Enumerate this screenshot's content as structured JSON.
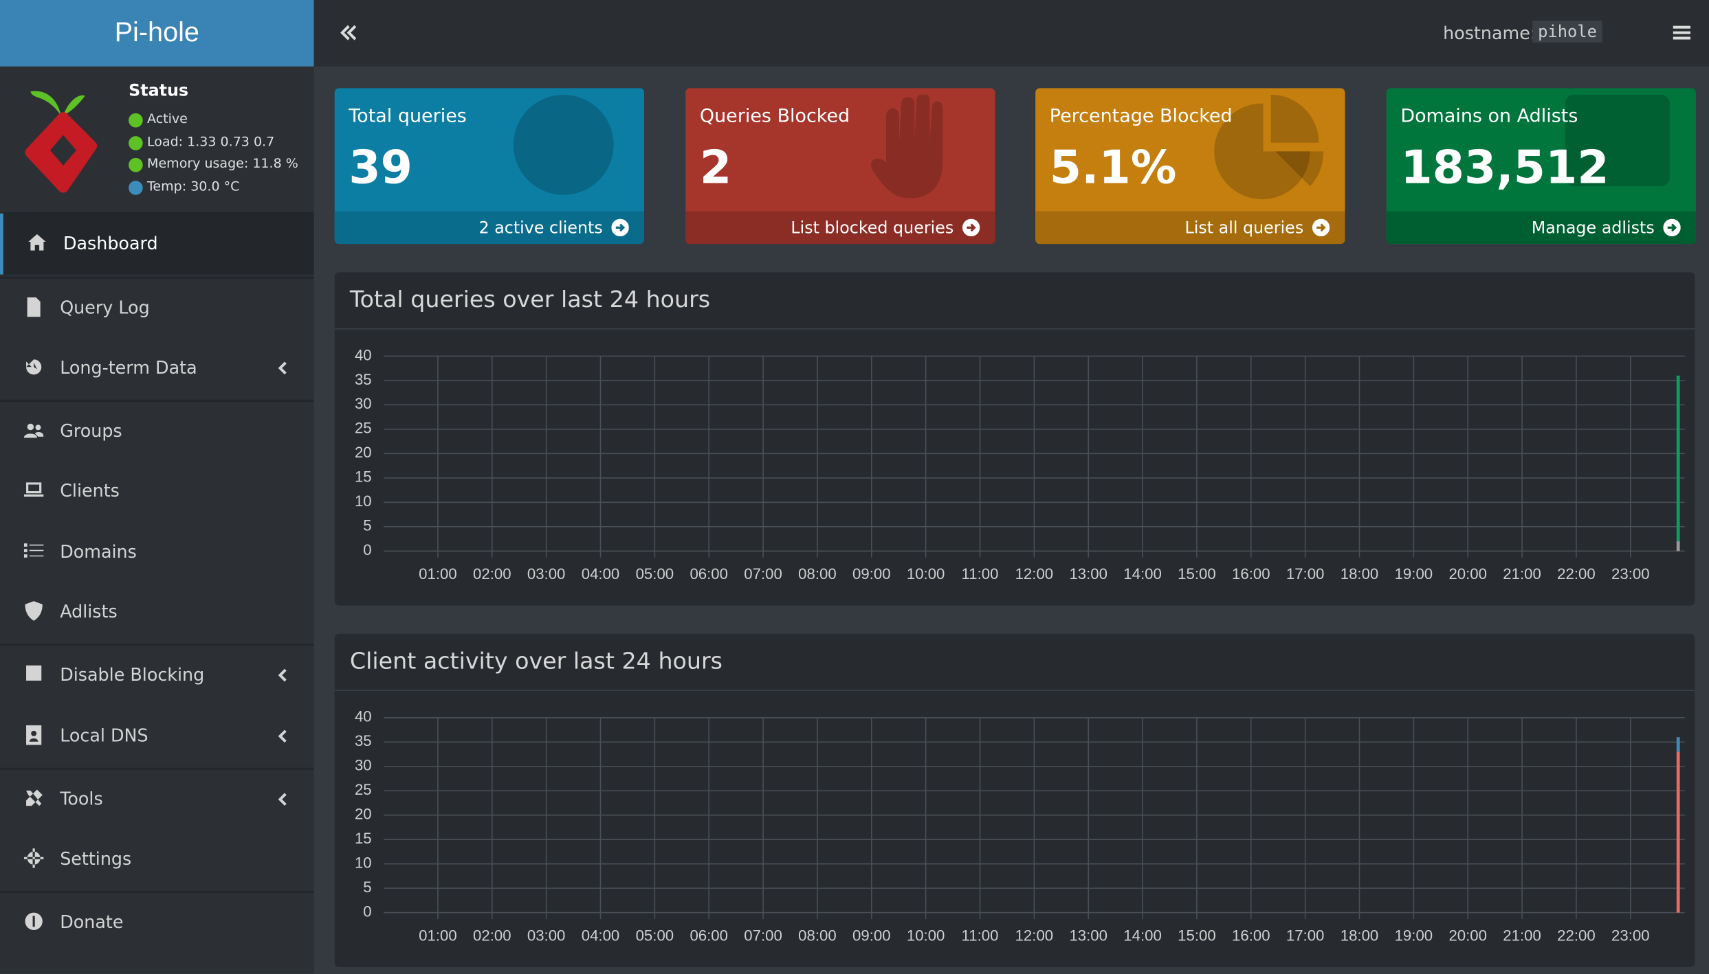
{
  "sidebar": {
    "brand": "Pi-hole",
    "status": {
      "title": "Status",
      "lines": [
        "Active",
        "Load:  1.33  0.73  0.7",
        "Memory usage:  11.8 %",
        "Temp: 30.0 °C"
      ]
    },
    "menu": [
      {
        "label": "Dashboard",
        "active": true
      },
      {
        "label": "Query Log"
      },
      {
        "label": "Long-term Data",
        "has_submenu": true
      },
      {
        "label": "Groups"
      },
      {
        "label": "Clients"
      },
      {
        "label": "Domains"
      },
      {
        "label": "Adlists"
      },
      {
        "label": "Disable Blocking",
        "has_submenu": true
      },
      {
        "label": "Local DNS",
        "has_submenu": true
      },
      {
        "label": "Tools",
        "has_submenu": true
      },
      {
        "label": "Settings"
      },
      {
        "label": "Donate"
      }
    ]
  },
  "topbar": {
    "hostname_label": "hostname:",
    "hostname": "pihole"
  },
  "cards": [
    {
      "title": "Total queries",
      "value": "39",
      "link": "2 active clients",
      "color": "#0c7ea3",
      "footer_color": "#0a6c8c"
    },
    {
      "title": "Queries Blocked",
      "value": "2",
      "link": "List blocked queries",
      "color": "#a6362c",
      "footer_color": "#8c2d25"
    },
    {
      "title": "Percentage Blocked",
      "value": "5.1%",
      "link": "List all queries",
      "color": "#c47f0f",
      "footer_color": "#a66b0c"
    },
    {
      "title": "Domains on Adlists",
      "value": "183,512",
      "link": "Manage adlists",
      "color": "#00763d",
      "footer_color": "#005f31"
    }
  ],
  "chart_data": [
    {
      "type": "bar",
      "stacked": true,
      "title": "Total queries over last 24 hours",
      "x": [
        23.88
      ],
      "series": [
        {
          "color": "#999999",
          "values": [
            2
          ]
        },
        {
          "color": "#00a65a",
          "values": [
            34
          ]
        }
      ],
      "xlim": [
        0,
        24
      ],
      "ylim": [
        0,
        40
      ],
      "yticks": [
        0,
        5,
        10,
        15,
        20,
        25,
        30,
        35,
        40
      ],
      "xticks": [
        {
          "value": 1,
          "label": "01:00"
        },
        {
          "value": 2,
          "label": "02:00"
        },
        {
          "value": 3,
          "label": "03:00"
        },
        {
          "value": 4,
          "label": "04:00"
        },
        {
          "value": 5,
          "label": "05:00"
        },
        {
          "value": 6,
          "label": "06:00"
        },
        {
          "value": 7,
          "label": "07:00"
        },
        {
          "value": 8,
          "label": "08:00"
        },
        {
          "value": 9,
          "label": "09:00"
        },
        {
          "value": 10,
          "label": "10:00"
        },
        {
          "value": 11,
          "label": "11:00"
        },
        {
          "value": 12,
          "label": "12:00"
        },
        {
          "value": 13,
          "label": "13:00"
        },
        {
          "value": 14,
          "label": "14:00"
        },
        {
          "value": 15,
          "label": "15:00"
        },
        {
          "value": 16,
          "label": "16:00"
        },
        {
          "value": 17,
          "label": "17:00"
        },
        {
          "value": 18,
          "label": "18:00"
        },
        {
          "value": 19,
          "label": "19:00"
        },
        {
          "value": 20,
          "label": "20:00"
        },
        {
          "value": 21,
          "label": "21:00"
        },
        {
          "value": 22,
          "label": "22:00"
        },
        {
          "value": 23,
          "label": "23:00"
        }
      ],
      "grid": true
    },
    {
      "type": "bar",
      "stacked": true,
      "title": "Client activity over last 24 hours",
      "x": [
        23.88
      ],
      "series": [
        {
          "color": "#f0675e",
          "values": [
            33
          ]
        },
        {
          "color": "#3c8dbc",
          "values": [
            3
          ]
        }
      ],
      "xlim": [
        0,
        24
      ],
      "ylim": [
        0,
        40
      ],
      "yticks": [
        0,
        5,
        10,
        15,
        20,
        25,
        30,
        35,
        40
      ],
      "xticks": [
        {
          "value": 1,
          "label": "01:00"
        },
        {
          "value": 2,
          "label": "02:00"
        },
        {
          "value": 3,
          "label": "03:00"
        },
        {
          "value": 4,
          "label": "04:00"
        },
        {
          "value": 5,
          "label": "05:00"
        },
        {
          "value": 6,
          "label": "06:00"
        },
        {
          "value": 7,
          "label": "07:00"
        },
        {
          "value": 8,
          "label": "08:00"
        },
        {
          "value": 9,
          "label": "09:00"
        },
        {
          "value": 10,
          "label": "10:00"
        },
        {
          "value": 11,
          "label": "11:00"
        },
        {
          "value": 12,
          "label": "12:00"
        },
        {
          "value": 13,
          "label": "13:00"
        },
        {
          "value": 14,
          "label": "14:00"
        },
        {
          "value": 15,
          "label": "15:00"
        },
        {
          "value": 16,
          "label": "16:00"
        },
        {
          "value": 17,
          "label": "17:00"
        },
        {
          "value": 18,
          "label": "18:00"
        },
        {
          "value": 19,
          "label": "19:00"
        },
        {
          "value": 20,
          "label": "20:00"
        },
        {
          "value": 21,
          "label": "21:00"
        },
        {
          "value": 22,
          "label": "22:00"
        },
        {
          "value": 23,
          "label": "23:00"
        }
      ],
      "grid": true
    }
  ]
}
